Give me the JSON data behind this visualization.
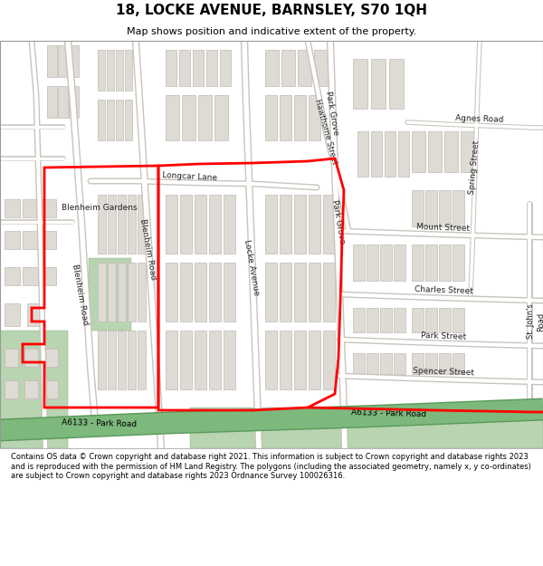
{
  "title": "18, LOCKE AVENUE, BARNSLEY, S70 1QH",
  "subtitle": "Map shows position and indicative extent of the property.",
  "footer": "Contains OS data © Crown copyright and database right 2021. This information is subject to Crown copyright and database rights 2023 and is reproduced with the permission of HM Land Registry. The polygons (including the associated geometry, namely x, y co-ordinates) are subject to Crown copyright and database rights 2023 Ordnance Survey 100026316.",
  "map_bg": "#f0ece3",
  "road_color": "#ffffff",
  "road_outline_color": "#c8c4bc",
  "building_color": "#dedad4",
  "building_outline": "#c0bbb4",
  "green_color": "#b8d4b0",
  "green_dark": "#8ab88a",
  "red_color": "#ff0000",
  "major_road_color": "#7db87d",
  "major_road_outline": "#5a9a5a",
  "yellow_road_color": "#f5e9a0",
  "yellow_road_outline": "#d4c870"
}
